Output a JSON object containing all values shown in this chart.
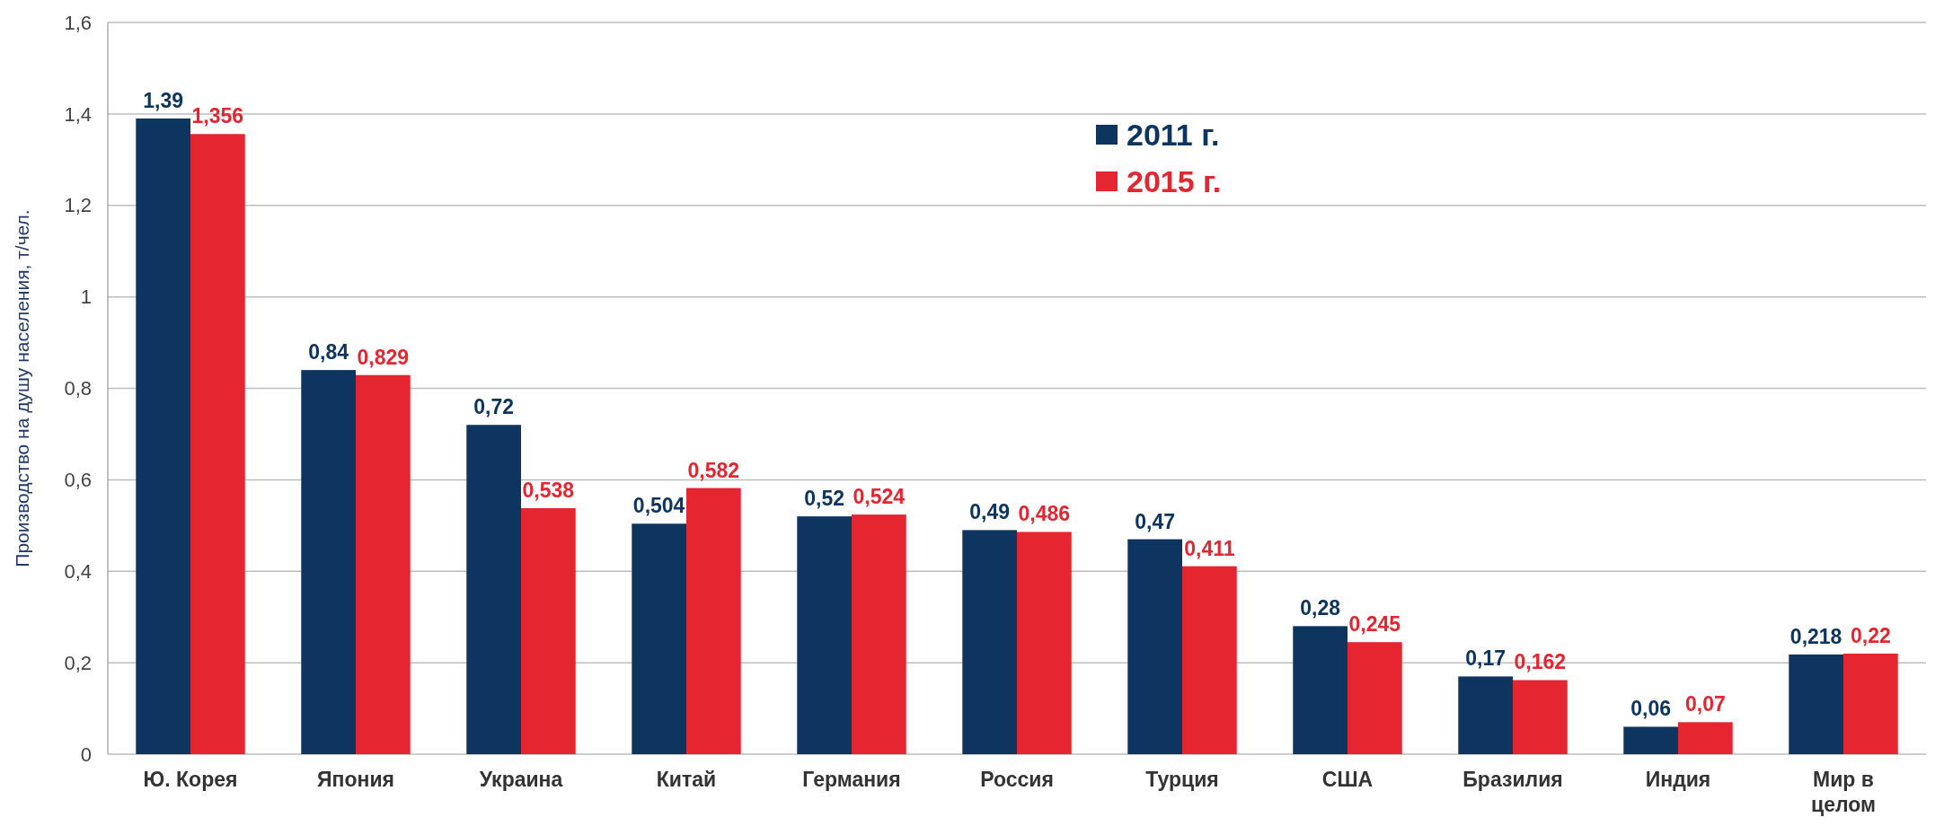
{
  "chart_data": {
    "type": "bar",
    "ylabel": "Производство на душу населения, т/чел.",
    "categories": [
      "Ю. Корея",
      "Япония",
      "Украина",
      "Китай",
      "Германия",
      "Россия",
      "Турция",
      "США",
      "Бразилия",
      "Индия",
      "Мир в целом"
    ],
    "series": [
      {
        "name": "2011 г.",
        "color": "#0d3560",
        "values": [
          1.39,
          0.84,
          0.72,
          0.504,
          0.52,
          0.49,
          0.47,
          0.28,
          0.17,
          0.06,
          0.218
        ],
        "value_labels": [
          "1,39",
          "0,84",
          "0,72",
          "0,504",
          "0,52",
          "0,49",
          "0,47",
          "0,28",
          "0,17",
          "0,06",
          "0,218"
        ]
      },
      {
        "name": "2015 г.",
        "color": "#e52530",
        "values": [
          1.356,
          0.829,
          0.538,
          0.582,
          0.524,
          0.486,
          0.411,
          0.245,
          0.162,
          0.07,
          0.22
        ],
        "value_labels": [
          "1,356",
          "0,829",
          "0,538",
          "0,582",
          "0,524",
          "0,486",
          "0,411",
          "0,245",
          "0,162",
          "0,07",
          "0,22"
        ]
      }
    ],
    "ylim": [
      0,
      1.6
    ],
    "yticks": [
      0,
      {
        "value": 0.2,
        "label": "0,2"
      },
      {
        "value": 0.4,
        "label": "0,4"
      },
      {
        "value": 0.6,
        "label": "0,6"
      },
      {
        "value": 0.8,
        "label": "0,8"
      },
      1,
      {
        "value": 1.2,
        "label": "1,2"
      },
      {
        "value": 1.4,
        "label": "1,4"
      },
      {
        "value": 1.6,
        "label": "1,6"
      }
    ],
    "grid": "y",
    "legend": "top right"
  }
}
